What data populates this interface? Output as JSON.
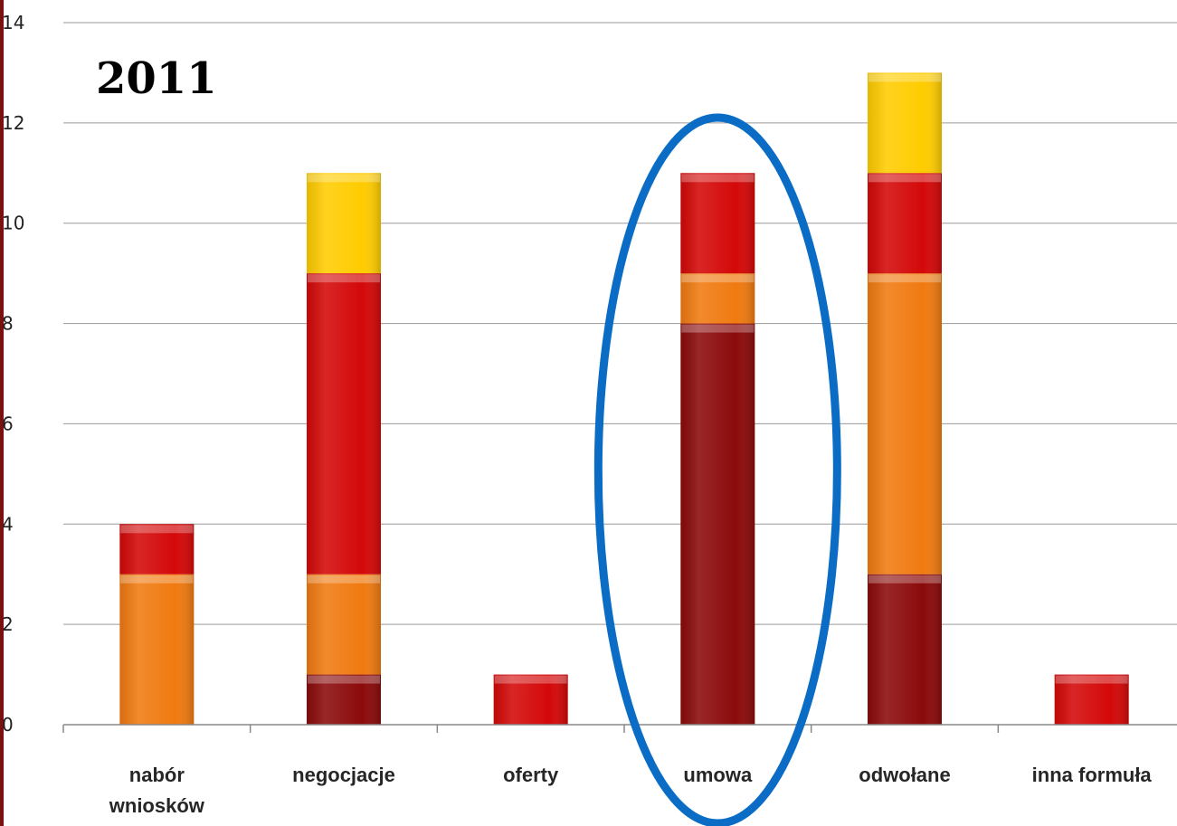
{
  "chart_data": {
    "type": "bar",
    "stacked": true,
    "title": "2011",
    "categories": [
      [
        "nabór",
        "wniosków"
      ],
      [
        "negocjacje"
      ],
      [
        "oferty"
      ],
      [
        "umowa"
      ],
      [
        "odwołane"
      ],
      [
        "inna formuła"
      ]
    ],
    "series": [
      {
        "color": "#8B0A0A",
        "values": [
          0,
          1,
          0,
          8,
          3,
          0
        ]
      },
      {
        "color": "#F07A10",
        "values": [
          3,
          2,
          0,
          1,
          6,
          0
        ]
      },
      {
        "color": "#D40808",
        "values": [
          1,
          6,
          1,
          2,
          2,
          1
        ]
      },
      {
        "color": "#FFCC00",
        "values": [
          0,
          2,
          0,
          0,
          2,
          0
        ]
      }
    ],
    "ylim": [
      0,
      14
    ],
    "yticks": [
      "0",
      "2",
      "4",
      "6",
      "8",
      "10",
      "12",
      "14"
    ],
    "grid": true,
    "highlight": {
      "category_index": 3,
      "shape": "ellipse",
      "color": "#0A6CC4"
    }
  }
}
